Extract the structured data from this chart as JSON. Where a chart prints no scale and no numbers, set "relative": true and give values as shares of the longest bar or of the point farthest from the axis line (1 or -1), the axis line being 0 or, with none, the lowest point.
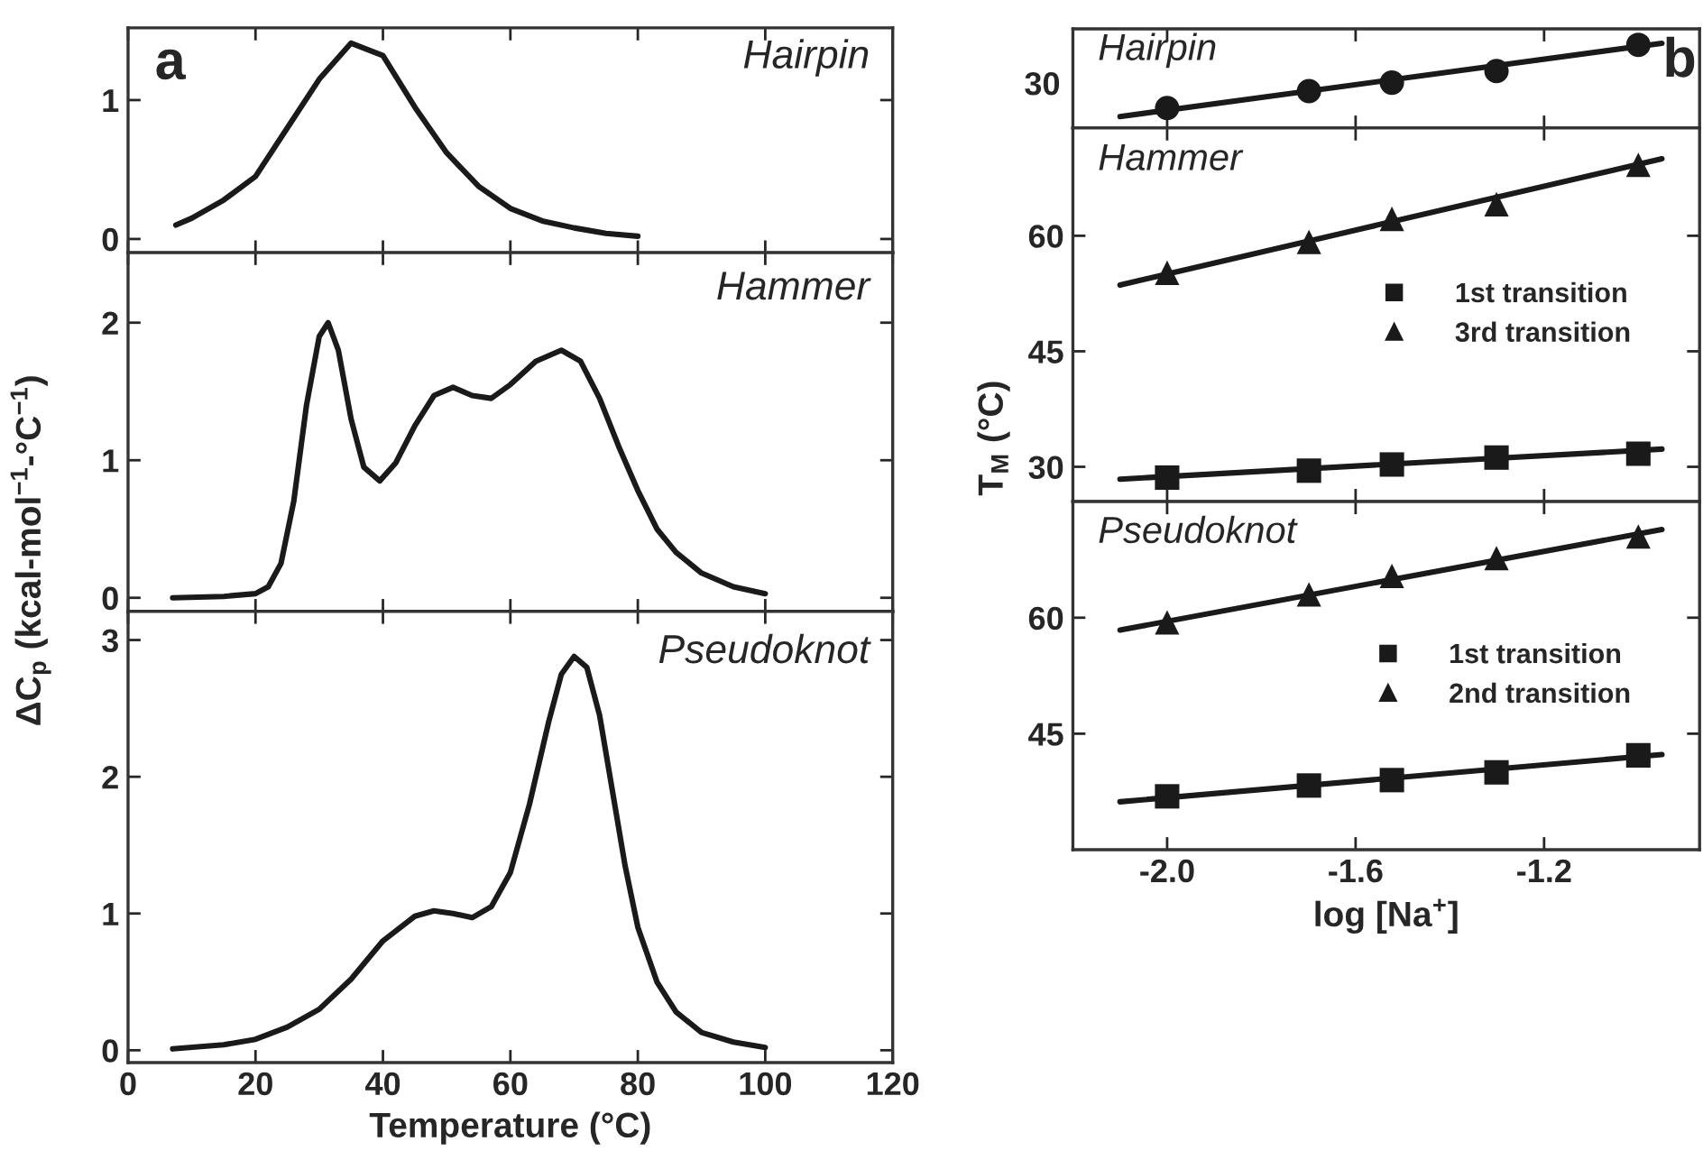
{
  "chart_data": [
    {
      "type": "line",
      "title": "Hairpin",
      "annotations": [
        "a"
      ],
      "xlim": [
        0,
        120
      ],
      "xticks": [
        {
          "value": 0,
          "label": null
        },
        {
          "value": 20,
          "label": null
        },
        {
          "value": 40,
          "label": null
        },
        {
          "value": 60,
          "label": null
        },
        {
          "value": 80,
          "label": null
        },
        {
          "value": 100,
          "label": null
        },
        {
          "value": 120,
          "label": null
        }
      ],
      "ylim": [
        -0.1,
        1.52
      ],
      "yticks": [
        0,
        1
      ],
      "tick_labels": "y",
      "legend": false,
      "grid": false,
      "series": [
        {
          "color": "#1a1a1a",
          "x": [
            7.5,
            10,
            15,
            20,
            25,
            30,
            35,
            40,
            45,
            50,
            55,
            60,
            65,
            70,
            75,
            80
          ],
          "values": [
            0.1,
            0.15,
            0.28,
            0.45,
            0.8,
            1.15,
            1.41,
            1.32,
            0.95,
            0.62,
            0.38,
            0.22,
            0.13,
            0.08,
            0.04,
            0.02
          ]
        }
      ]
    },
    {
      "type": "line",
      "title": "Hammer",
      "ylabel": "ΔC$_{p}$ (kcal-mol$^{−1}$-°C$^{−1}$)",
      "xlim": [
        0,
        120
      ],
      "xticks": [
        {
          "value": 0,
          "label": null
        },
        {
          "value": 20,
          "label": null
        },
        {
          "value": 40,
          "label": null
        },
        {
          "value": 60,
          "label": null
        },
        {
          "value": 80,
          "label": null
        },
        {
          "value": 100,
          "label": null
        },
        {
          "value": 120,
          "label": null
        }
      ],
      "ylim": [
        -0.1,
        2.51
      ],
      "yticks": [
        0,
        1,
        2
      ],
      "tick_labels": "y",
      "legend": false,
      "grid": false,
      "series": [
        {
          "color": "#1a1a1a",
          "x": [
            7,
            15,
            20,
            22,
            24,
            26,
            28,
            30,
            31.4,
            33,
            35,
            37,
            39.5,
            42,
            45,
            48,
            51,
            54,
            57,
            60,
            64,
            68,
            71,
            74,
            77,
            80,
            83,
            86,
            90,
            95,
            100
          ],
          "values": [
            0,
            0.01,
            0.03,
            0.08,
            0.25,
            0.7,
            1.4,
            1.9,
            2.0,
            1.8,
            1.3,
            0.95,
            0.85,
            0.98,
            1.25,
            1.47,
            1.53,
            1.47,
            1.45,
            1.55,
            1.72,
            1.8,
            1.72,
            1.45,
            1.1,
            0.78,
            0.5,
            0.33,
            0.18,
            0.08,
            0.03
          ]
        }
      ]
    },
    {
      "type": "line",
      "title": "Pseudoknot",
      "xlabel": "Temperature (°C)",
      "xlim": [
        0,
        120
      ],
      "xticks": [
        0,
        20,
        40,
        60,
        80,
        100,
        120
      ],
      "ylim": [
        -0.09,
        3.21
      ],
      "yticks": [
        0,
        1,
        2,
        3
      ],
      "legend": false,
      "grid": false,
      "series": [
        {
          "color": "#1a1a1a",
          "x": [
            7,
            15,
            20,
            25,
            30,
            35,
            40,
            45,
            48,
            51,
            54,
            57,
            60,
            63,
            66,
            68,
            70,
            72,
            74,
            76,
            78,
            80,
            83,
            86,
            90,
            95,
            100
          ],
          "values": [
            0.01,
            0.04,
            0.08,
            0.17,
            0.3,
            0.52,
            0.8,
            0.98,
            1.02,
            1.0,
            0.97,
            1.05,
            1.3,
            1.8,
            2.4,
            2.75,
            2.88,
            2.8,
            2.45,
            1.9,
            1.35,
            0.9,
            0.5,
            0.28,
            0.13,
            0.06,
            0.02
          ]
        }
      ]
    },
    {
      "type": "scatter",
      "title": "Hairpin",
      "annotations": [
        "b",
        "30"
      ],
      "relative": true,
      "xlim": [
        -2.2,
        -0.87
      ],
      "xticks": [
        {
          "value": -2.0,
          "label": null
        },
        {
          "value": -1.6,
          "label": null
        },
        {
          "value": -1.2,
          "label": null
        }
      ],
      "tick_labels": false,
      "legend": false,
      "grid": false,
      "series": [
        {
          "color": "#1a1a1a",
          "marker": "circle",
          "x": [
            -2.0,
            -1.699,
            -1.523,
            -1.301,
            -1.0
          ],
          "values": [
            0.236,
            0.436,
            0.536,
            0.673,
            0.982
          ]
        },
        {
          "type": "line",
          "color": "#1a1a1a",
          "x": [
            -2.1,
            -0.95
          ],
          "values": [
            0.136,
            1
          ]
        }
      ]
    },
    {
      "type": "scatter",
      "title": "Hammer",
      "ylabel": "T$_{M}$ (°C)",
      "xlim": [
        -2.2,
        -0.87
      ],
      "xticks": [
        {
          "value": -2.0,
          "label": null
        },
        {
          "value": -1.6,
          "label": null
        },
        {
          "value": -1.2,
          "label": null
        }
      ],
      "ylim": [
        25.5,
        74.0
      ],
      "yticks": [
        30,
        45,
        60
      ],
      "tick_labels": "y",
      "legend": "right",
      "grid": false,
      "series": [
        {
          "name": "1st transition",
          "color": "#1a1a1a",
          "marker": "square",
          "x": [
            -2.0,
            -1.699,
            -1.523,
            -1.301,
            -1.0
          ],
          "values": [
            28.6,
            29.5,
            30.3,
            31.2,
            31.7
          ]
        },
        {
          "name": "3rd transition",
          "color": "#1a1a1a",
          "marker": "triangle",
          "x": [
            -2.0,
            -1.699,
            -1.523,
            -1.301,
            -1.0
          ],
          "values": [
            55.2,
            59.2,
            62.2,
            64.1,
            69.2
          ]
        },
        {
          "type": "line",
          "color": "#1a1a1a",
          "x": [
            -2.1,
            -0.95
          ],
          "values": [
            28.4,
            32.3
          ]
        },
        {
          "type": "line",
          "color": "#1a1a1a",
          "x": [
            -2.1,
            -0.95
          ],
          "values": [
            53.6,
            70.0
          ]
        }
      ]
    },
    {
      "type": "scatter",
      "title": "Pseudoknot",
      "xlabel": "log [Na$^{+}$]",
      "xlim": [
        -2.2,
        -0.87
      ],
      "xticks": [
        {
          "value": -2.0,
          "label": "-2.0"
        },
        -1.6,
        -1.2
      ],
      "ylim": [
        30,
        75
      ],
      "yticks": [
        45,
        60
      ],
      "legend": "right",
      "grid": false,
      "series": [
        {
          "name": "1st transition",
          "color": "#1a1a1a",
          "marker": "square",
          "x": [
            -2.0,
            -1.699,
            -1.523,
            -1.301,
            -1.0
          ],
          "values": [
            36.9,
            38.3,
            39.0,
            40.0,
            42.2
          ]
        },
        {
          "name": "2nd transition",
          "color": "#1a1a1a",
          "marker": "triangle",
          "x": [
            -2.0,
            -1.699,
            -1.523,
            -1.301,
            -1.0
          ],
          "values": [
            59.4,
            63.0,
            65.4,
            67.7,
            70.5
          ]
        },
        {
          "type": "line",
          "color": "#1a1a1a",
          "x": [
            -2.1,
            -0.95
          ],
          "values": [
            36.2,
            42.3
          ]
        },
        {
          "type": "line",
          "color": "#1a1a1a",
          "x": [
            -2.1,
            -0.95
          ],
          "values": [
            58.4,
            71.4
          ]
        }
      ]
    }
  ]
}
